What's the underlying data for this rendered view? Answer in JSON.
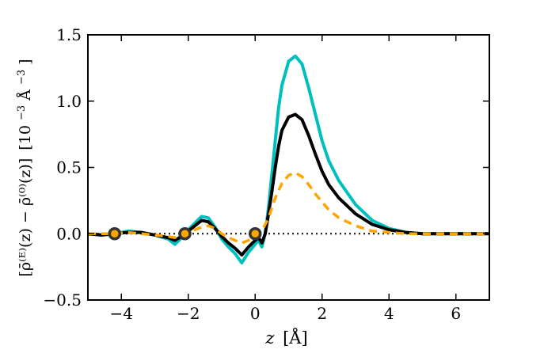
{
  "chart_data": {
    "type": "line",
    "title": "",
    "xlabel_var": "z",
    "xlabel_unit": "[Å]",
    "ylabel_main": "[ρ̄⁽ᴱ⁾(z) − ρ̄⁽⁰⁾(z)]",
    "ylabel_unit": "[10",
    "ylabel_exp": "−3",
    "ylabel_unit_tail": "Å",
    "ylabel_exp2": "−3",
    "ylabel_close": "]",
    "xlim": [
      -5,
      7
    ],
    "ylim": [
      -0.5,
      1.5
    ],
    "xticks": [
      -4,
      -2,
      0,
      2,
      4,
      6
    ],
    "xtick_labels": [
      "−4",
      "−2",
      "0",
      "2",
      "4",
      "6"
    ],
    "yticks": [
      -0.5,
      0.0,
      0.5,
      1.0,
      1.5
    ],
    "ytick_labels": [
      "−0.5",
      "0.0",
      "0.5",
      "1.0",
      "1.5"
    ],
    "grid": false,
    "colors": {
      "cyan": "#00bfbf",
      "black": "#000000",
      "orange": "#ffa500",
      "marker_edge": "#333333"
    },
    "series": [
      {
        "style": "solid",
        "color": "#00bfbf",
        "x": [
          -5,
          -4.6,
          -4.2,
          -3.8,
          -3.4,
          -3.0,
          -2.6,
          -2.4,
          -2.2,
          -2.1,
          -2.0,
          -1.8,
          -1.6,
          -1.4,
          -1.2,
          -1.0,
          -0.8,
          -0.6,
          -0.4,
          -0.2,
          0.0,
          0.1,
          0.2,
          0.3,
          0.4,
          0.5,
          0.6,
          0.7,
          0.8,
          1.0,
          1.2,
          1.4,
          1.6,
          1.8,
          2.0,
          2.2,
          2.5,
          3.0,
          3.5,
          4.0,
          4.5,
          5.0,
          5.5,
          6.0,
          6.5,
          7.0
        ],
        "y": [
          0.0,
          -0.01,
          0.0,
          0.02,
          0.01,
          -0.01,
          -0.04,
          -0.08,
          -0.03,
          0.0,
          0.03,
          0.08,
          0.13,
          0.12,
          0.05,
          -0.04,
          -0.1,
          -0.15,
          -0.22,
          -0.14,
          -0.08,
          -0.05,
          -0.1,
          0.0,
          0.2,
          0.45,
          0.7,
          0.95,
          1.12,
          1.3,
          1.34,
          1.28,
          1.1,
          0.9,
          0.7,
          0.55,
          0.4,
          0.22,
          0.1,
          0.04,
          0.01,
          0.0,
          0.0,
          0.0,
          0.0,
          0.0
        ]
      },
      {
        "style": "solid",
        "color": "#000000",
        "x": [
          -5,
          -4.6,
          -4.2,
          -3.8,
          -3.4,
          -3.0,
          -2.6,
          -2.4,
          -2.2,
          -2.1,
          -2.0,
          -1.8,
          -1.6,
          -1.4,
          -1.2,
          -1.0,
          -0.8,
          -0.6,
          -0.4,
          -0.2,
          0.0,
          0.1,
          0.2,
          0.3,
          0.4,
          0.5,
          0.6,
          0.7,
          0.8,
          1.0,
          1.2,
          1.4,
          1.6,
          1.8,
          2.0,
          2.2,
          2.5,
          3.0,
          3.5,
          4.0,
          4.5,
          5.0,
          5.5,
          6.0,
          6.5,
          7.0
        ],
        "y": [
          0.0,
          -0.01,
          0.0,
          0.01,
          0.01,
          -0.01,
          -0.03,
          -0.05,
          -0.02,
          0.0,
          0.02,
          0.06,
          0.1,
          0.09,
          0.04,
          -0.02,
          -0.07,
          -0.11,
          -0.16,
          -0.1,
          -0.05,
          -0.03,
          -0.07,
          0.0,
          0.15,
          0.32,
          0.5,
          0.66,
          0.78,
          0.88,
          0.9,
          0.86,
          0.74,
          0.6,
          0.47,
          0.37,
          0.27,
          0.15,
          0.07,
          0.03,
          0.01,
          0.0,
          0.0,
          0.0,
          0.0,
          0.0
        ]
      },
      {
        "style": "dashed",
        "color": "#ffa500",
        "x": [
          -5,
          -4.6,
          -4.2,
          -3.8,
          -3.4,
          -3.0,
          -2.6,
          -2.4,
          -2.2,
          -2.0,
          -1.8,
          -1.6,
          -1.4,
          -1.2,
          -1.0,
          -0.8,
          -0.6,
          -0.4,
          -0.2,
          0.0,
          0.2,
          0.4,
          0.6,
          0.8,
          1.0,
          1.2,
          1.4,
          1.6,
          1.8,
          2.0,
          2.2,
          2.5,
          3.0,
          3.5,
          4.0,
          4.5,
          5.0,
          5.5,
          6.0,
          6.5,
          7.0
        ],
        "y": [
          0.0,
          0.0,
          0.0,
          0.01,
          0.0,
          -0.01,
          -0.02,
          -0.03,
          -0.01,
          0.01,
          0.03,
          0.05,
          0.06,
          0.04,
          0.0,
          -0.03,
          -0.05,
          -0.07,
          -0.05,
          -0.02,
          0.02,
          0.12,
          0.27,
          0.38,
          0.44,
          0.46,
          0.43,
          0.37,
          0.3,
          0.24,
          0.18,
          0.12,
          0.06,
          0.02,
          0.01,
          0.0,
          0.0,
          0.0,
          0.0,
          0.0,
          0.0
        ]
      }
    ],
    "reference_line": {
      "y": 0.0,
      "style": "dotted",
      "color": "#000000"
    },
    "markers": [
      {
        "x": -4.2,
        "y": 0.0
      },
      {
        "x": -2.1,
        "y": 0.0
      },
      {
        "x": 0.0,
        "y": 0.0
      }
    ]
  }
}
